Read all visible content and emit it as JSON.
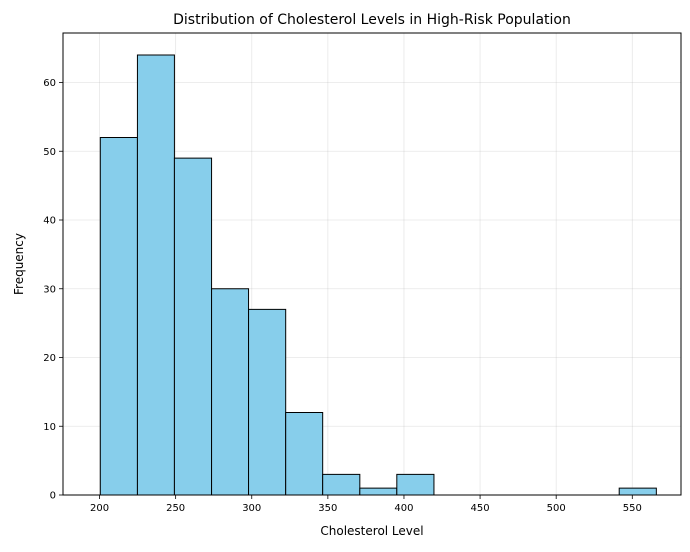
{
  "chart_data": {
    "type": "bar",
    "subtype": "histogram",
    "title": "Distribution of Cholesterol Levels in High-Risk Population",
    "xlabel": "Cholesterol Level",
    "ylabel": "Frequency",
    "bin_edges": [
      200.5,
      224.9,
      249.2,
      273.6,
      297.9,
      322.3,
      346.6,
      371.0,
      395.3,
      419.7,
      444.0,
      468.4,
      492.7,
      517.1,
      541.4,
      565.8
    ],
    "values": [
      52,
      64,
      49,
      30,
      27,
      12,
      3,
      1,
      3,
      0,
      0,
      0,
      0,
      0,
      1
    ],
    "xlim": [
      176,
      582
    ],
    "ylim": [
      0,
      67.2
    ],
    "xticks": [
      200,
      250,
      300,
      350,
      400,
      450,
      500,
      550
    ],
    "yticks": [
      0,
      10,
      20,
      30,
      40,
      50,
      60
    ],
    "grid": true,
    "bar_color": "#87CEEB",
    "edge_color": "#000000"
  }
}
